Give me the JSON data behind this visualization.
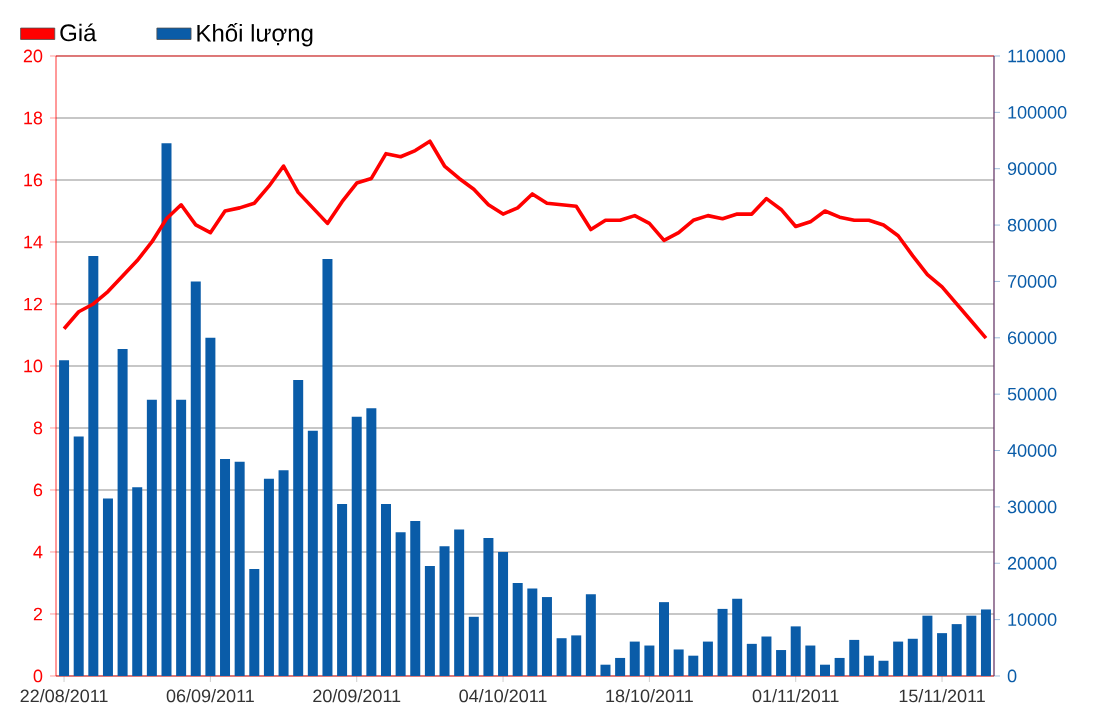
{
  "chart_data": {
    "type": "bar",
    "legend": "top left",
    "grid": "y",
    "categories": [
      "22/08/2011",
      null,
      null,
      null,
      null,
      null,
      null,
      null,
      null,
      null,
      "06/09/2011",
      null,
      null,
      null,
      null,
      null,
      null,
      null,
      null,
      null,
      "20/09/2011",
      null,
      null,
      null,
      null,
      null,
      null,
      null,
      null,
      null,
      "04/10/2011",
      null,
      null,
      null,
      null,
      null,
      null,
      null,
      null,
      null,
      "18/10/2011",
      null,
      null,
      null,
      null,
      null,
      null,
      null,
      null,
      null,
      "01/11/2011",
      null,
      null,
      null,
      null,
      null,
      null,
      null,
      null,
      null,
      "15/11/2011",
      null,
      null,
      null
    ],
    "ylim": [
      0,
      20
    ],
    "yticks": [
      0,
      2,
      4,
      6,
      8,
      10,
      12,
      14,
      16,
      18,
      20
    ],
    "y2lim": [
      0,
      110000
    ],
    "y2ticks": [
      0,
      10000,
      20000,
      30000,
      40000,
      50000,
      60000,
      70000,
      80000,
      90000,
      100000,
      110000
    ],
    "series": [
      {
        "name": "Giá",
        "type": "line",
        "axis": "y",
        "color": "#ff0000",
        "values": [
          11.2,
          11.75,
          12.0,
          12.4,
          12.9,
          13.4,
          14.0,
          14.75,
          15.2,
          14.55,
          14.3,
          15.0,
          15.1,
          15.25,
          15.8,
          16.45,
          15.6,
          15.1,
          14.6,
          15.3,
          15.9,
          16.05,
          16.85,
          16.75,
          16.95,
          17.25,
          16.45,
          16.05,
          15.7,
          15.2,
          14.9,
          15.1,
          15.55,
          15.25,
          15.2,
          15.15,
          14.4,
          14.7,
          14.7,
          14.85,
          14.6,
          14.05,
          14.3,
          14.7,
          14.85,
          14.75,
          14.9,
          14.9,
          15.4,
          15.05,
          14.5,
          14.65,
          15.0,
          14.8,
          14.7,
          14.7,
          14.55,
          14.2,
          13.55,
          12.95,
          12.55,
          12.0,
          11.45,
          10.9
        ]
      },
      {
        "name": "Khối lượng",
        "axis": "y2",
        "color": "#0a5ca8",
        "values": [
          56000,
          42500,
          74500,
          31500,
          58000,
          33500,
          49000,
          94500,
          49000,
          70000,
          60000,
          38500,
          38000,
          19000,
          35000,
          36500,
          52500,
          43500,
          74000,
          30500,
          46000,
          47500,
          30500,
          25500,
          27500,
          19500,
          23000,
          26000,
          10500,
          24500,
          22000,
          16500,
          15500,
          14000,
          6700,
          7200,
          14500,
          2000,
          3200,
          6100,
          5400,
          13100,
          4700,
          3600,
          6100,
          11900,
          13700,
          5700,
          7000,
          4600,
          8800,
          5400,
          2000,
          3200,
          6400,
          3600,
          2700,
          6100,
          6600,
          10700,
          7600,
          9200,
          10700,
          11800
        ]
      }
    ]
  }
}
